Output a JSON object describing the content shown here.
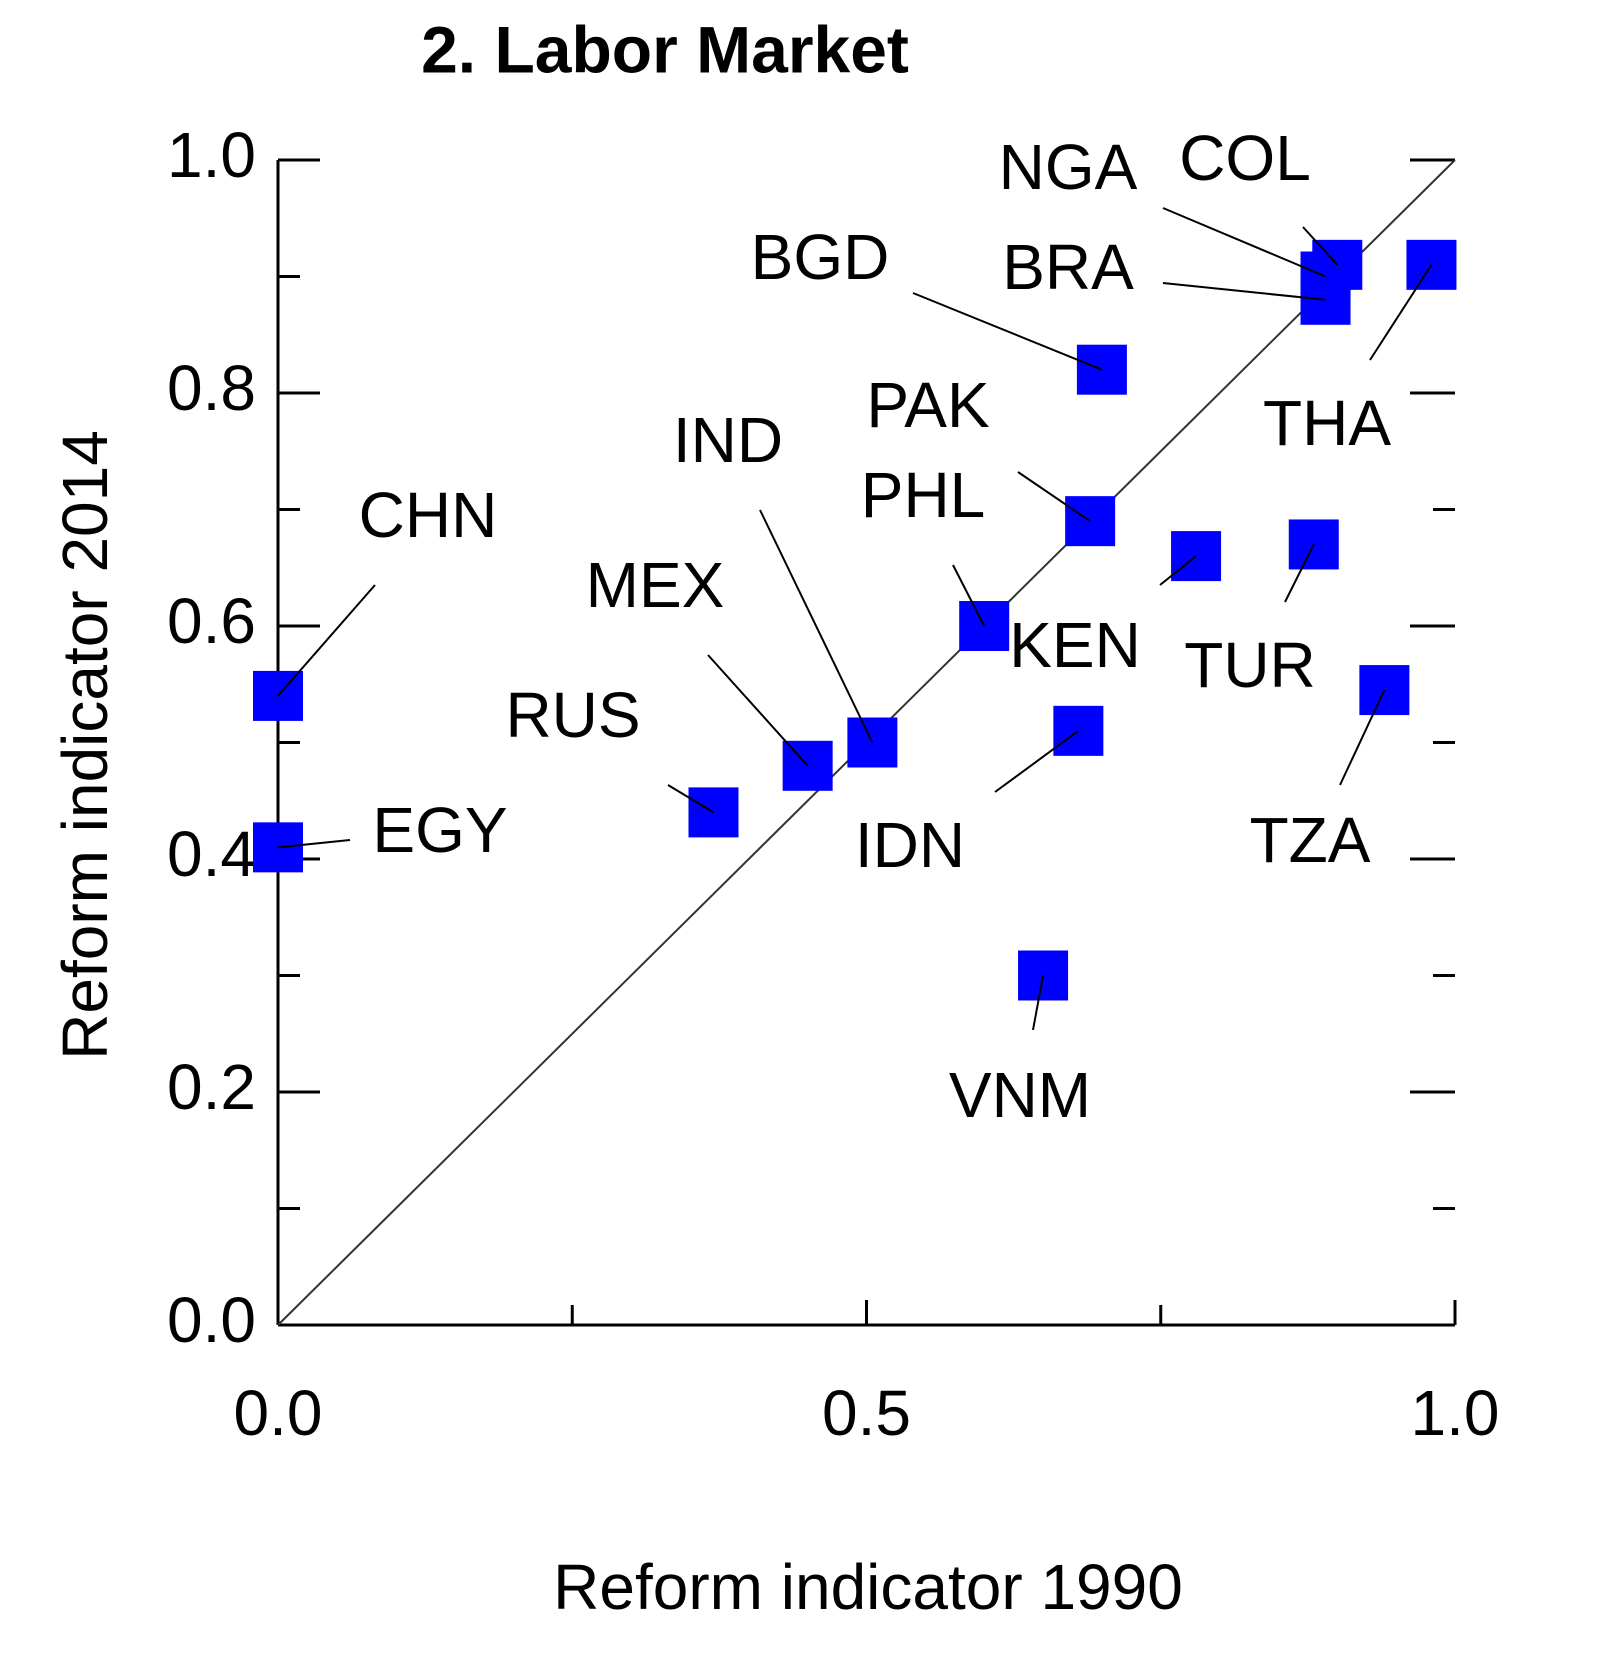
{
  "chart_data": {
    "type": "scatter",
    "title": "2. Labor Market",
    "xlabel": "Reform indicator 1990",
    "ylabel": "Reform indicator 2014",
    "xlim": [
      0,
      1
    ],
    "ylim": [
      0,
      1
    ],
    "xticks": [
      {
        "value": 0,
        "label": "0.0"
      },
      {
        "value": 0.5,
        "label": "0.5"
      },
      {
        "value": 1,
        "label": "1.0"
      }
    ],
    "xminorticks": [
      0.25,
      0.75
    ],
    "yticks": [
      {
        "value": 0,
        "label": "0.0"
      },
      {
        "value": 0.2,
        "label": "0.2"
      },
      {
        "value": 0.4,
        "label": "0.4"
      },
      {
        "value": 0.6,
        "label": "0.6"
      },
      {
        "value": 0.8,
        "label": "0.8"
      },
      {
        "value": 1,
        "label": "1.0"
      }
    ],
    "yminorticks": [
      0.1,
      0.3,
      0.5,
      0.7,
      0.9
    ],
    "color": "#0000ff",
    "points": [
      {
        "label": "CHN",
        "x": 0.0,
        "y": 0.54
      },
      {
        "label": "EGY",
        "x": 0.0,
        "y": 0.41
      },
      {
        "label": "RUS",
        "x": 0.37,
        "y": 0.44
      },
      {
        "label": "MEX",
        "x": 0.45,
        "y": 0.48
      },
      {
        "label": "IND",
        "x": 0.505,
        "y": 0.5
      },
      {
        "label": "PHL",
        "x": 0.6,
        "y": 0.6
      },
      {
        "label": "PAK",
        "x": 0.69,
        "y": 0.69
      },
      {
        "label": "KEN",
        "x": 0.78,
        "y": 0.66
      },
      {
        "label": "TUR",
        "x": 0.88,
        "y": 0.67
      },
      {
        "label": "IDN",
        "x": 0.68,
        "y": 0.51
      },
      {
        "label": "VNM",
        "x": 0.65,
        "y": 0.3
      },
      {
        "label": "TZA",
        "x": 0.94,
        "y": 0.545
      },
      {
        "label": "BGD",
        "x": 0.7,
        "y": 0.82
      },
      {
        "label": "NGA",
        "x": 0.89,
        "y": 0.9
      },
      {
        "label": "COL",
        "x": 0.9,
        "y": 0.91
      },
      {
        "label": "BRA",
        "x": 0.89,
        "y": 0.88
      },
      {
        "label": "THA",
        "x": 0.98,
        "y": 0.91
      }
    ]
  }
}
